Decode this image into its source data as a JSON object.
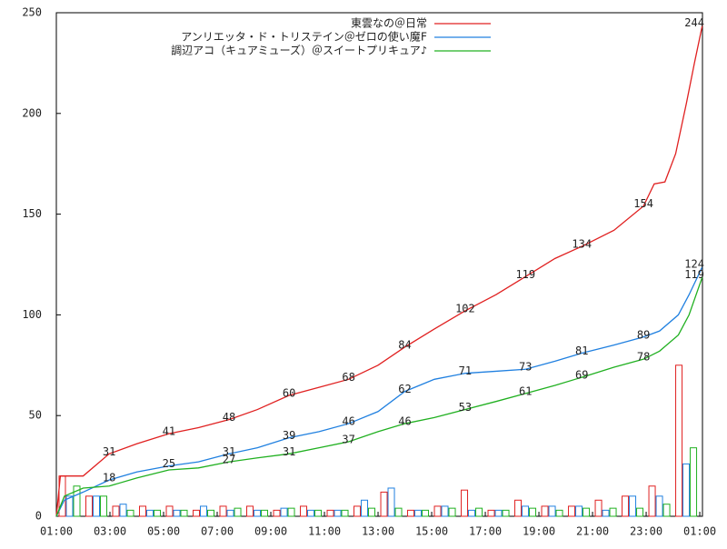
{
  "chart_data": {
    "type": "line",
    "xlim": [
      0,
      24.1
    ],
    "ylim": [
      0,
      250
    ],
    "xticks": [
      {
        "value": 0,
        "label": "01:00"
      },
      {
        "value": 2,
        "label": "03:00"
      },
      {
        "value": 4,
        "label": "05:00"
      },
      {
        "value": 6,
        "label": "07:00"
      },
      {
        "value": 8,
        "label": "09:00"
      },
      {
        "value": 10,
        "label": "11:00"
      },
      {
        "value": 12,
        "label": "13:00"
      },
      {
        "value": 14,
        "label": "15:00"
      },
      {
        "value": 16,
        "label": "17:00"
      },
      {
        "value": 18,
        "label": "19:00"
      },
      {
        "value": 20,
        "label": "21:00"
      },
      {
        "value": 22,
        "label": "23:00"
      },
      {
        "value": 24,
        "label": "01:00"
      }
    ],
    "yticks": [
      0,
      50,
      100,
      150,
      200,
      250
    ],
    "hours": [
      0,
      1,
      2,
      3,
      4,
      5,
      6,
      7,
      8,
      9,
      10,
      11,
      12,
      13,
      14,
      15,
      16,
      17,
      18,
      19,
      20,
      21,
      22,
      23
    ],
    "series": [
      {
        "name": "東雲なの＠日常",
        "color": "#e02020",
        "x": [
          0,
          0.15,
          1,
          1.97,
          3,
          4.2,
          5.3,
          6.44,
          7.5,
          8.68,
          9.8,
          10.9,
          12,
          13,
          14.1,
          15.25,
          16.4,
          17.5,
          18.6,
          19.6,
          20.8,
          21.9,
          22.3,
          22.7,
          23.1,
          23.5,
          23.8,
          24.1
        ],
        "values": [
          0,
          20,
          20,
          31,
          36,
          41,
          44,
          48,
          53,
          60,
          64,
          68,
          75,
          84,
          93,
          102,
          110,
          119,
          128,
          134,
          142,
          154,
          165,
          166,
          180,
          205,
          225,
          244
        ],
        "labels": {
          "x": [
            1.97,
            4.2,
            6.44,
            8.68,
            10.9,
            13,
            15.25,
            17.5,
            19.6,
            21.9,
            23.8
          ],
          "values": [
            31,
            41,
            48,
            60,
            68,
            84,
            102,
            119,
            134,
            154,
            244
          ]
        },
        "hourly": [
          20,
          10,
          5,
          5,
          5,
          3,
          5,
          5,
          3,
          5,
          3,
          5,
          12,
          3,
          5,
          13,
          3,
          8,
          5,
          5,
          8,
          10,
          15,
          75
        ]
      },
      {
        "name": "アンリエッタ・ド・トリステイン＠ゼロの使い魔F",
        "color": "#2080e0",
        "x": [
          0,
          0.3,
          1,
          1.97,
          3,
          4.2,
          5.3,
          6.44,
          7.5,
          8.68,
          9.8,
          10.9,
          12,
          13,
          14.1,
          15.25,
          16.4,
          17.5,
          18.6,
          19.6,
          20.8,
          21.9,
          22.5,
          23.2,
          23.6,
          24.1
        ],
        "values": [
          0,
          8,
          12,
          18,
          22,
          25,
          27,
          31,
          34,
          39,
          42,
          46,
          52,
          62,
          68,
          71,
          72,
          73,
          77,
          81,
          85,
          89,
          92,
          100,
          110,
          124
        ],
        "labels": {
          "x": [
            1.97,
            4.2,
            6.44,
            8.68,
            10.9,
            13,
            15.25,
            17.5,
            19.6,
            21.9,
            23.8
          ],
          "values": [
            18,
            25,
            31,
            39,
            46,
            62,
            71,
            73,
            81,
            89,
            124
          ]
        },
        "hourly": [
          10,
          10,
          6,
          3,
          3,
          5,
          3,
          3,
          4,
          3,
          3,
          8,
          14,
          3,
          5,
          3,
          3,
          5,
          5,
          5,
          3,
          10,
          10,
          26
        ]
      },
      {
        "name": "調辺アコ（キュアミューズ）＠スイートプリキュア♪",
        "color": "#20b020",
        "x": [
          0,
          0.3,
          1,
          1.97,
          3,
          4.2,
          5.3,
          6.44,
          7.5,
          8.68,
          9.8,
          10.9,
          12,
          13,
          14.1,
          15.25,
          16.4,
          17.5,
          18.6,
          19.6,
          20.8,
          21.9,
          22.5,
          23.2,
          23.6,
          24.1
        ],
        "values": [
          0,
          10,
          14,
          15,
          19,
          23,
          24,
          27,
          29,
          31,
          34,
          37,
          42,
          46,
          49,
          53,
          57,
          61,
          65,
          69,
          74,
          78,
          82,
          90,
          100,
          119
        ],
        "labels": {
          "x": [
            6.44,
            8.68,
            10.9,
            13,
            15.25,
            17.5,
            19.6,
            21.9,
            23.8
          ],
          "values": [
            27,
            31,
            37,
            46,
            53,
            61,
            69,
            78,
            119
          ]
        },
        "hourly": [
          15,
          10,
          3,
          3,
          3,
          3,
          4,
          3,
          4,
          3,
          3,
          4,
          4,
          3,
          4,
          4,
          3,
          4,
          3,
          4,
          4,
          4,
          6,
          34
        ]
      }
    ]
  }
}
